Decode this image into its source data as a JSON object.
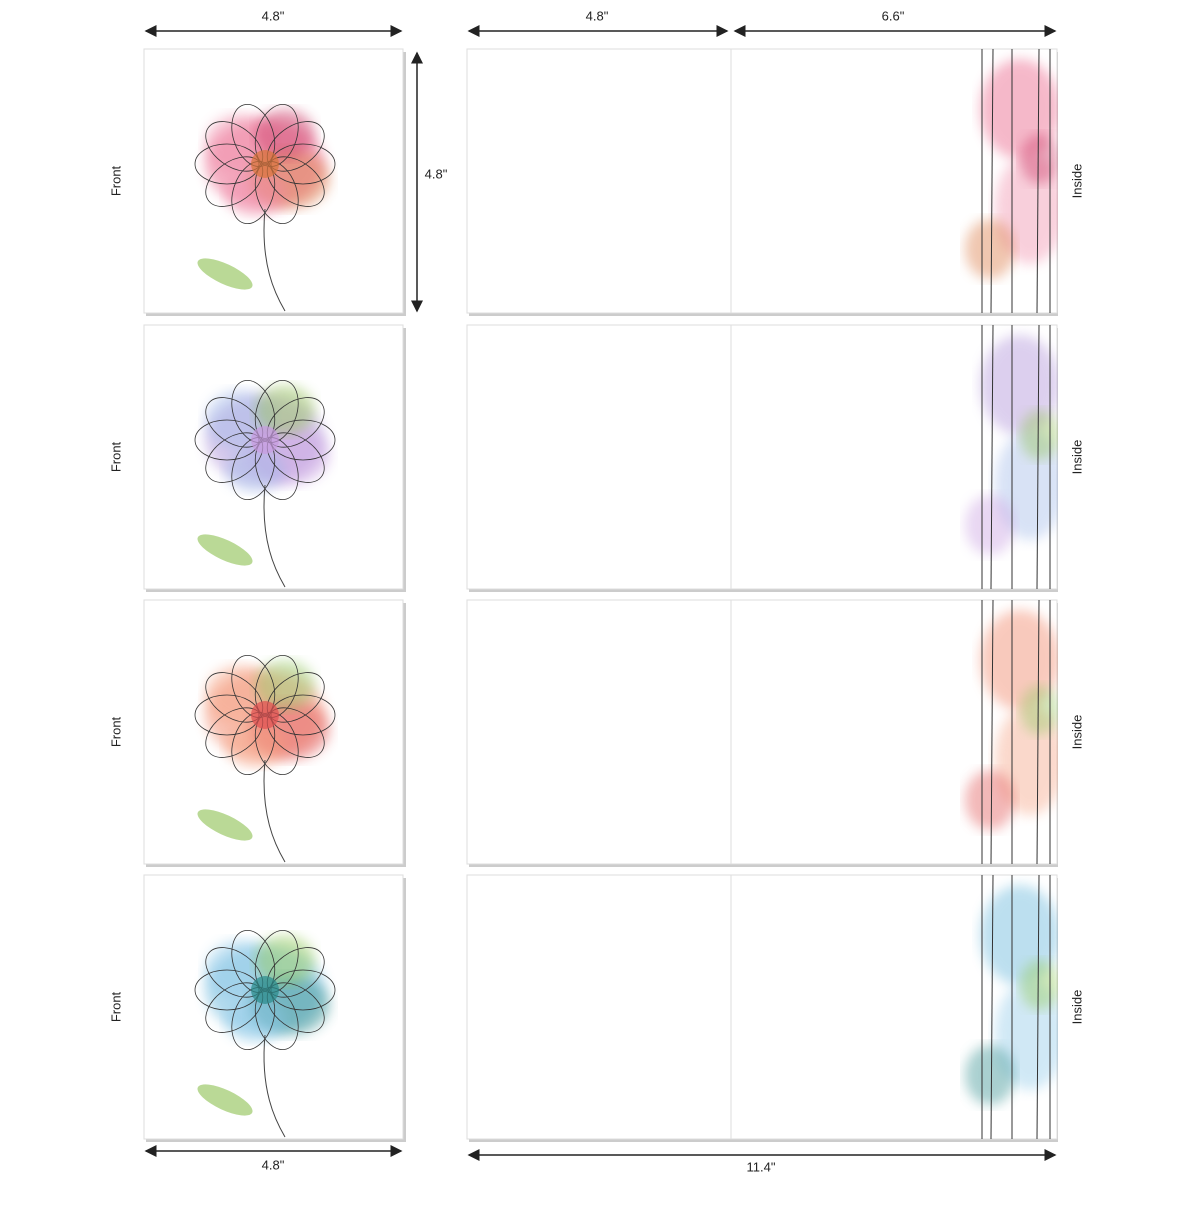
{
  "dimensions": {
    "top": [
      "4.8\"",
      "4.8\"",
      "6.6\""
    ],
    "side": "4.8\"",
    "bottom": [
      "4.8\"",
      "11.4\""
    ]
  },
  "rows": [
    {
      "front_label": "Front",
      "inside_label": "Inside"
    },
    {
      "front_label": "Front",
      "inside_label": "Inside"
    },
    {
      "front_label": "Front",
      "inside_label": "Inside"
    },
    {
      "front_label": "Front",
      "inside_label": "Inside"
    }
  ]
}
